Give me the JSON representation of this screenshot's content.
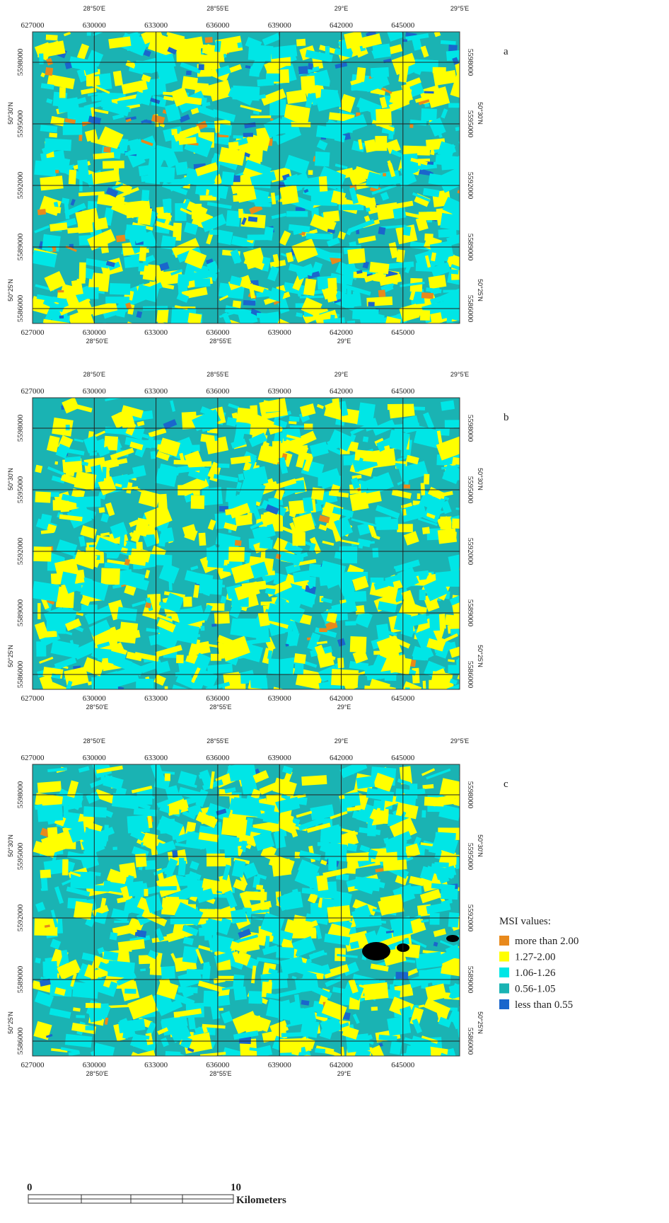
{
  "panels": [
    {
      "label": "a"
    },
    {
      "label": "b"
    },
    {
      "label": "c"
    }
  ],
  "grid": {
    "eastings": [
      "627000",
      "630000",
      "633000",
      "636000",
      "639000",
      "642000",
      "645000"
    ],
    "northings": [
      "5598000",
      "5595000",
      "5592000",
      "5589000",
      "5586000"
    ],
    "longitudes": [
      "28°50'E",
      "28°55'E",
      "29°E",
      "29°5'E"
    ],
    "latitudes": [
      "50°30'N",
      "50°25'N"
    ]
  },
  "legend": {
    "title": "MSI values:",
    "items": [
      {
        "label": "more than 2.00",
        "color": "#e8891c"
      },
      {
        "label": "1.27-2.00",
        "color": "#ffff00"
      },
      {
        "label": "1.06-1.26",
        "color": "#00e6e6"
      },
      {
        "label": "0.56-1.05",
        "color": "#1ab3b3"
      },
      {
        "label": "less than 0.55",
        "color": "#1a66cc"
      }
    ]
  },
  "scale_bar": {
    "start": "0",
    "end": "10",
    "unit": "Kilometers"
  }
}
